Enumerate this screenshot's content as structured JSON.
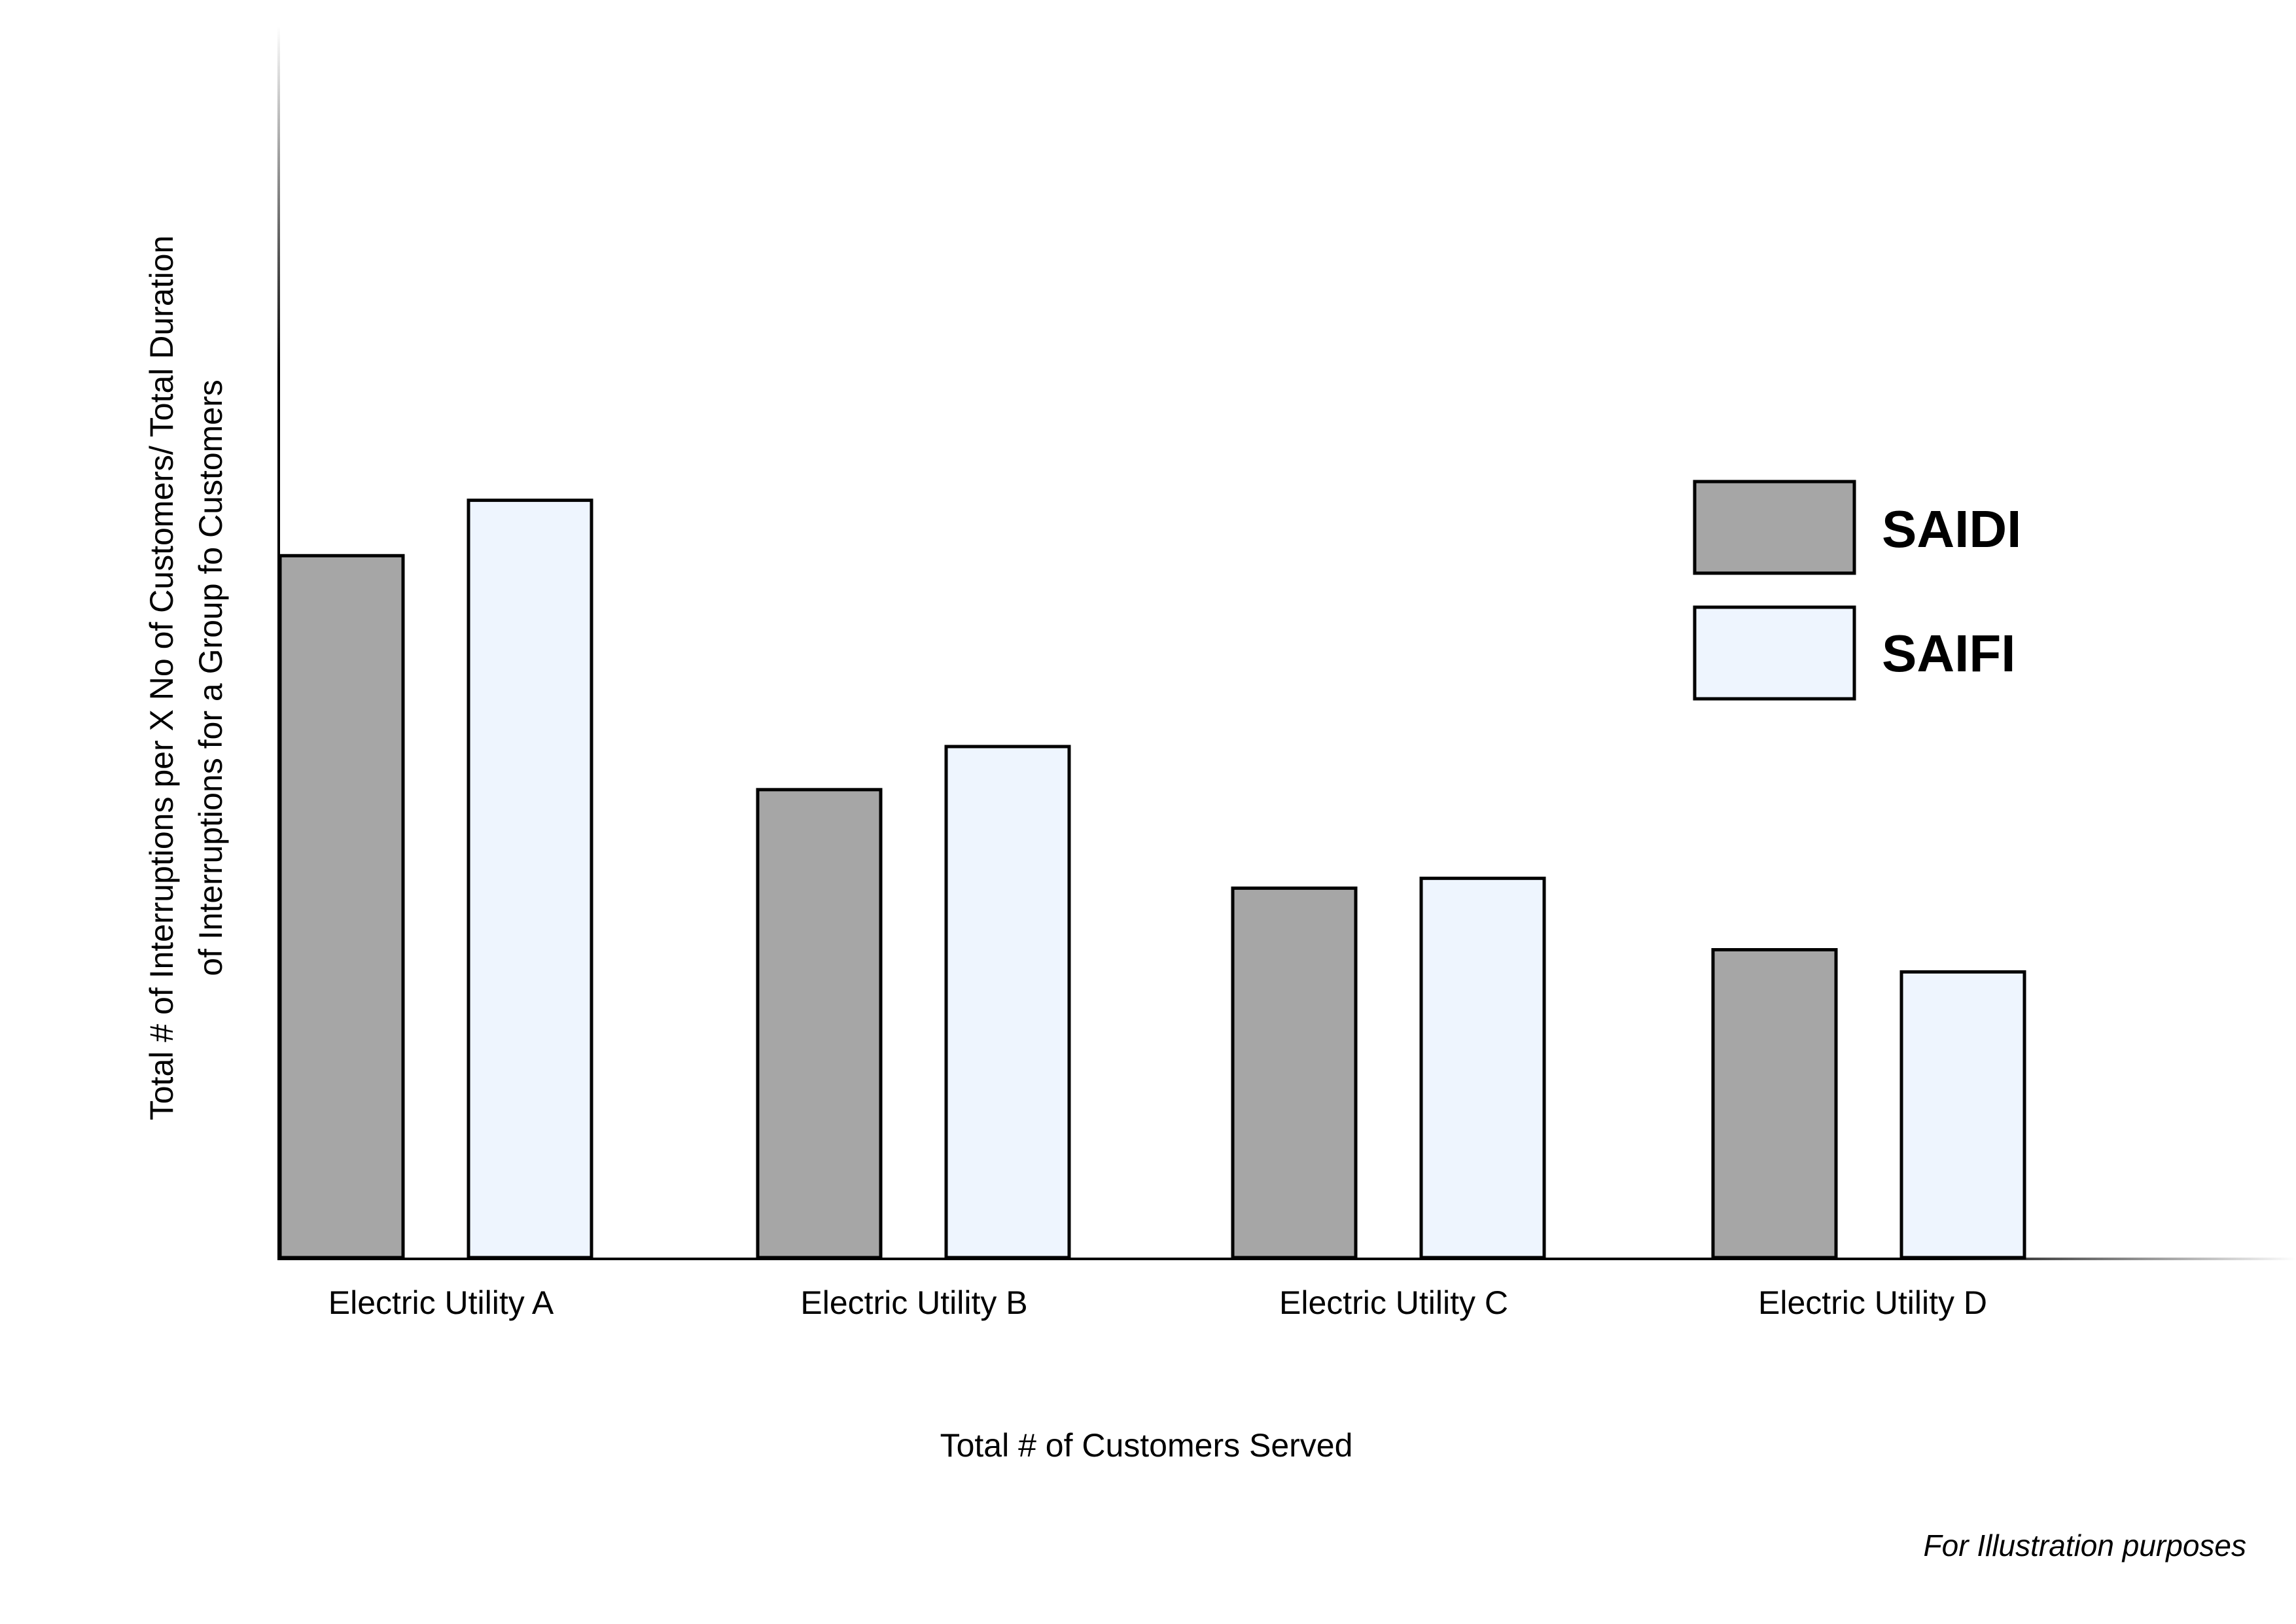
{
  "chart_data": {
    "type": "bar",
    "categories": [
      "Electric Utility A",
      "Electric Utility B",
      "Electric Utility C",
      "Electric Utility D"
    ],
    "series": [
      {
        "name": "SAIDI",
        "values": [
          57,
          38,
          30,
          25
        ],
        "color": "#a6a6a6"
      },
      {
        "name": "SAIFI",
        "values": [
          61.5,
          41.5,
          30.8,
          23.2
        ],
        "color": "#eef5fe"
      }
    ],
    "title": "",
    "xlabel": "Total # of Customers Served",
    "ylabel_lines": [
      "Total # of Interruptions per X No of Customers/ Total Duration",
      "of Interruptions for a Group fo Customers"
    ],
    "ylim": [
      0,
      100
    ],
    "grid": false,
    "legend_position": "top-right",
    "axis_color": "#000000",
    "bar_stroke": "#000000"
  },
  "footnote": "For Illustration purposes"
}
